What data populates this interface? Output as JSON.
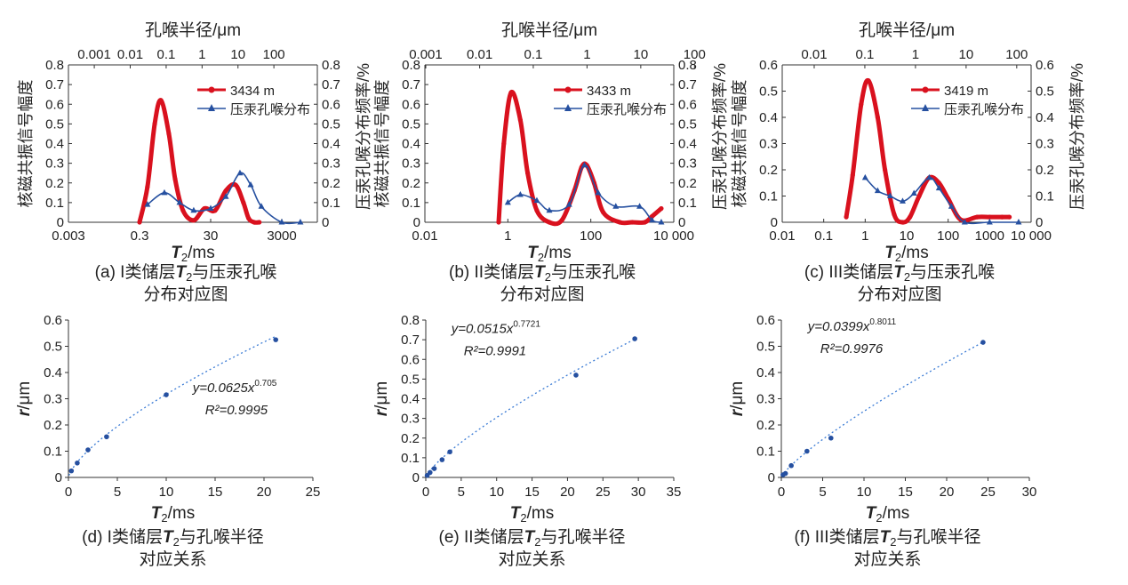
{
  "units": {
    "t2": "ms",
    "radius": "μm",
    "bold_letter": "T",
    "subscript": "2",
    "t2_suffix": "/ms",
    "r_italic": "r",
    "r_suffix": "/μm"
  },
  "chart_data": [
    {
      "id": "a",
      "type": "line",
      "xscale": "log",
      "caption_line1": "(a) I类储层",
      "caption_line2": "与压汞孔喉",
      "caption_line3": "分布对应图",
      "xlabel": "T2/ms",
      "ylabel_left": "核磁共振信号幅度",
      "ylabel_right": "压汞孔喉分布频率/%",
      "top_axis_title": "孔喉半径/μm",
      "xlim": [
        0.003,
        30000
      ],
      "ylim": [
        0,
        0.8
      ],
      "xticks": [
        0.003,
        0.3,
        30,
        3000
      ],
      "xtick_labels": [
        "0.003",
        "0.3",
        "30",
        "3000"
      ],
      "yticks": [
        0,
        0.1,
        0.2,
        0.3,
        0.4,
        0.5,
        0.6,
        0.7,
        0.8
      ],
      "ytick_labels": [
        "0",
        "0.1",
        "0.2",
        "0.3",
        "0.4",
        "0.5",
        "0.6",
        "0.7",
        "0.8"
      ],
      "top_ticks_t2": [
        0.016,
        0.164,
        1.68,
        17.2,
        176,
        1800
      ],
      "top_tick_labels": [
        "0.001",
        "0.01",
        "0.1",
        "1",
        "10",
        "100"
      ],
      "legend": [
        "3434 m",
        "压汞孔喉分布"
      ],
      "series": [
        {
          "name": "3434 m",
          "color": "#d9111e",
          "marker": "circle",
          "x": [
            0.3,
            0.5,
            0.8,
            1.2,
            2,
            3,
            5,
            10,
            20,
            40,
            80,
            150,
            250,
            350,
            500,
            700
          ],
          "y": [
            0.0,
            0.18,
            0.5,
            0.62,
            0.45,
            0.22,
            0.06,
            0.01,
            0.07,
            0.06,
            0.16,
            0.19,
            0.1,
            0.02,
            0.0,
            0.0
          ]
        },
        {
          "name": "压汞孔喉分布",
          "color": "#2650a0",
          "marker": "triangle",
          "x": [
            0.5,
            1.5,
            4,
            10,
            30,
            80,
            200,
            400,
            800,
            3000,
            10000
          ],
          "y": [
            0.09,
            0.15,
            0.1,
            0.06,
            0.07,
            0.13,
            0.25,
            0.19,
            0.08,
            0.0,
            0.0
          ]
        }
      ]
    },
    {
      "id": "b",
      "type": "line",
      "xscale": "log",
      "caption_line1": "(b) II类储层",
      "caption_line2": "与压汞孔喉",
      "caption_line3": "分布对应图",
      "xlabel": "T2/ms",
      "ylabel_left": "核磁共振信号幅度",
      "ylabel_right": "压汞孔喉分布频率/%",
      "top_axis_title": "孔喉半径/μm",
      "xlim": [
        0.01,
        10000
      ],
      "ylim": [
        0,
        0.8
      ],
      "xticks": [
        0.01,
        1,
        100,
        10000
      ],
      "xtick_labels": [
        "0.01",
        "1",
        "100",
        "10 000"
      ],
      "yticks": [
        0,
        0.1,
        0.2,
        0.3,
        0.4,
        0.5,
        0.6,
        0.7,
        0.8
      ],
      "ytick_labels": [
        "0",
        "0.1",
        "0.2",
        "0.3",
        "0.4",
        "0.5",
        "0.6",
        "0.7",
        "0.8"
      ],
      "top_ticks_t2": [
        0.0105,
        0.209,
        4.1,
        81,
        1600,
        31600
      ],
      "top_tick_labels": [
        "0.001",
        "0.01",
        "0.1",
        "1",
        "10",
        "100"
      ],
      "legend": [
        "3433 m",
        "压汞孔喉分布"
      ],
      "series": [
        {
          "name": "3433 m",
          "color": "#d9111e",
          "marker": "circle",
          "x": [
            0.6,
            0.8,
            1.2,
            2,
            3,
            5,
            10,
            20,
            40,
            60,
            80,
            120,
            200,
            500,
            1000,
            2000,
            3000,
            5000
          ],
          "y": [
            0.0,
            0.4,
            0.66,
            0.52,
            0.25,
            0.06,
            0.0,
            0.01,
            0.16,
            0.28,
            0.29,
            0.2,
            0.05,
            0.0,
            0.0,
            0.0,
            0.03,
            0.07
          ]
        },
        {
          "name": "压汞孔喉分布",
          "color": "#2650a0",
          "marker": "triangle",
          "x": [
            1,
            2,
            5,
            10,
            30,
            70,
            150,
            400,
            1500,
            3000,
            5000
          ],
          "y": [
            0.1,
            0.14,
            0.11,
            0.06,
            0.09,
            0.29,
            0.15,
            0.08,
            0.08,
            0.01,
            0.0
          ]
        }
      ]
    },
    {
      "id": "c",
      "type": "line",
      "xscale": "log",
      "caption_line1": "(c) III类储层",
      "caption_line2": "与压汞孔喉",
      "caption_line3": "分布对应图",
      "xlabel": "T2/ms",
      "ylabel_left": "核磁共振信号幅度",
      "ylabel_right": "压汞孔喉分布频率/%",
      "top_axis_title": "孔喉半径/μm",
      "xlim": [
        0.01,
        10000
      ],
      "ylim": [
        0,
        0.6
      ],
      "xticks": [
        0.01,
        0.1,
        1,
        10,
        100,
        1000,
        10000
      ],
      "xtick_labels": [
        "0.01",
        "0.1",
        "1",
        "10",
        "100",
        "1000",
        "10 000"
      ],
      "yticks": [
        0,
        0.1,
        0.2,
        0.3,
        0.4,
        0.5,
        0.6
      ],
      "ytick_labels": [
        "0",
        "0.1",
        "0.2",
        "0.3",
        "0.4",
        "0.5",
        "0.6"
      ],
      "top_ticks_t2": [
        0.059,
        0.981,
        16.3,
        271,
        4500
      ],
      "top_tick_labels": [
        "0.01",
        "0.1",
        "1",
        "10",
        "100"
      ],
      "legend": [
        "3419 m",
        "压汞孔喉分布"
      ],
      "series": [
        {
          "name": "3419 m",
          "color": "#d9111e",
          "marker": "circle",
          "x": [
            0.35,
            0.5,
            0.8,
            1.2,
            2,
            3,
            5,
            8,
            12,
            20,
            35,
            60,
            100,
            200,
            500,
            1000,
            2000,
            3000
          ],
          "y": [
            0.02,
            0.18,
            0.45,
            0.54,
            0.4,
            0.2,
            0.03,
            0.0,
            0.02,
            0.1,
            0.17,
            0.15,
            0.09,
            0.01,
            0.02,
            0.02,
            0.02,
            0.02
          ]
        },
        {
          "name": "压汞孔喉分布",
          "color": "#2650a0",
          "marker": "triangle",
          "x": [
            1,
            2,
            4,
            8,
            15,
            35,
            60,
            120,
            250,
            1000,
            5000
          ],
          "y": [
            0.17,
            0.12,
            0.1,
            0.08,
            0.11,
            0.17,
            0.13,
            0.06,
            0.0,
            0.0,
            0.0
          ]
        }
      ]
    },
    {
      "id": "d",
      "type": "scatter",
      "caption_line1": "(d) I类储层",
      "caption_line2": "与孔喉半径",
      "caption_line3": "对应关系",
      "xlabel": "T2/ms",
      "ylabel": "r/μm",
      "xlim": [
        0,
        25
      ],
      "ylim": [
        0,
        0.6
      ],
      "xticks": [
        0,
        5,
        10,
        15,
        20,
        25
      ],
      "xtick_labels": [
        "0",
        "5",
        "10",
        "15",
        "20",
        "25"
      ],
      "yticks": [
        0,
        0.1,
        0.2,
        0.3,
        0.4,
        0.5,
        0.6
      ],
      "ytick_labels": [
        "0",
        "0.1",
        "0.2",
        "0.3",
        "0.4",
        "0.5",
        "0.6"
      ],
      "fit": {
        "a": 0.0625,
        "b": 0.705
      },
      "equation_prefix": "y=0.0625x",
      "equation_exponent": "0.705",
      "r2_label": "R²=0.9995",
      "x": [
        0.3,
        0.9,
        2.0,
        3.9,
        10.0,
        21.2
      ],
      "y": [
        0.025,
        0.055,
        0.105,
        0.155,
        0.315,
        0.525
      ]
    },
    {
      "id": "e",
      "type": "scatter",
      "caption_line1": "(e) II类储层",
      "caption_line2": "与孔喉半径",
      "caption_line3": "对应关系",
      "xlabel": "T2/ms",
      "ylabel": "r/μm",
      "xlim": [
        0,
        35
      ],
      "ylim": [
        0,
        0.8
      ],
      "xticks": [
        0,
        5,
        10,
        15,
        20,
        25,
        30,
        35
      ],
      "xtick_labels": [
        "0",
        "5",
        "10",
        "15",
        "20",
        "25",
        "30",
        "35"
      ],
      "yticks": [
        0,
        0.1,
        0.2,
        0.3,
        0.4,
        0.5,
        0.6,
        0.7,
        0.8
      ],
      "ytick_labels": [
        "0",
        "0.1",
        "0.2",
        "0.3",
        "0.4",
        "0.5",
        "0.6",
        "0.7",
        "0.8"
      ],
      "fit": {
        "a": 0.0515,
        "b": 0.7721
      },
      "equation_prefix": "y=0.0515x",
      "equation_exponent": "0.7721",
      "r2_label": "R²=0.9991",
      "x": [
        0.2,
        0.6,
        1.2,
        2.3,
        3.4,
        21.2,
        29.5
      ],
      "y": [
        0.01,
        0.025,
        0.045,
        0.09,
        0.13,
        0.52,
        0.705
      ]
    },
    {
      "id": "f",
      "type": "scatter",
      "caption_line1": "(f) III类储层",
      "caption_line2": "与孔喉半径",
      "caption_line3": "对应关系",
      "xlabel": "T2/ms",
      "ylabel": "r/μm",
      "xlim": [
        0,
        30
      ],
      "ylim": [
        0,
        0.6
      ],
      "xticks": [
        0,
        5,
        10,
        15,
        20,
        25,
        30
      ],
      "xtick_labels": [
        "0",
        "5",
        "10",
        "15",
        "20",
        "25",
        "30"
      ],
      "yticks": [
        0,
        0.1,
        0.2,
        0.3,
        0.4,
        0.5,
        0.6
      ],
      "ytick_labels": [
        "0",
        "0.1",
        "0.2",
        "0.3",
        "0.4",
        "0.5",
        "0.6"
      ],
      "fit": {
        "a": 0.0399,
        "b": 0.8011
      },
      "equation_prefix": "y=0.0399x",
      "equation_exponent": "0.8011",
      "r2_label": "R²=0.9976",
      "x": [
        0.2,
        0.5,
        1.2,
        3.1,
        6.0,
        24.4
      ],
      "y": [
        0.01,
        0.015,
        0.045,
        0.1,
        0.15,
        0.515
      ]
    }
  ]
}
